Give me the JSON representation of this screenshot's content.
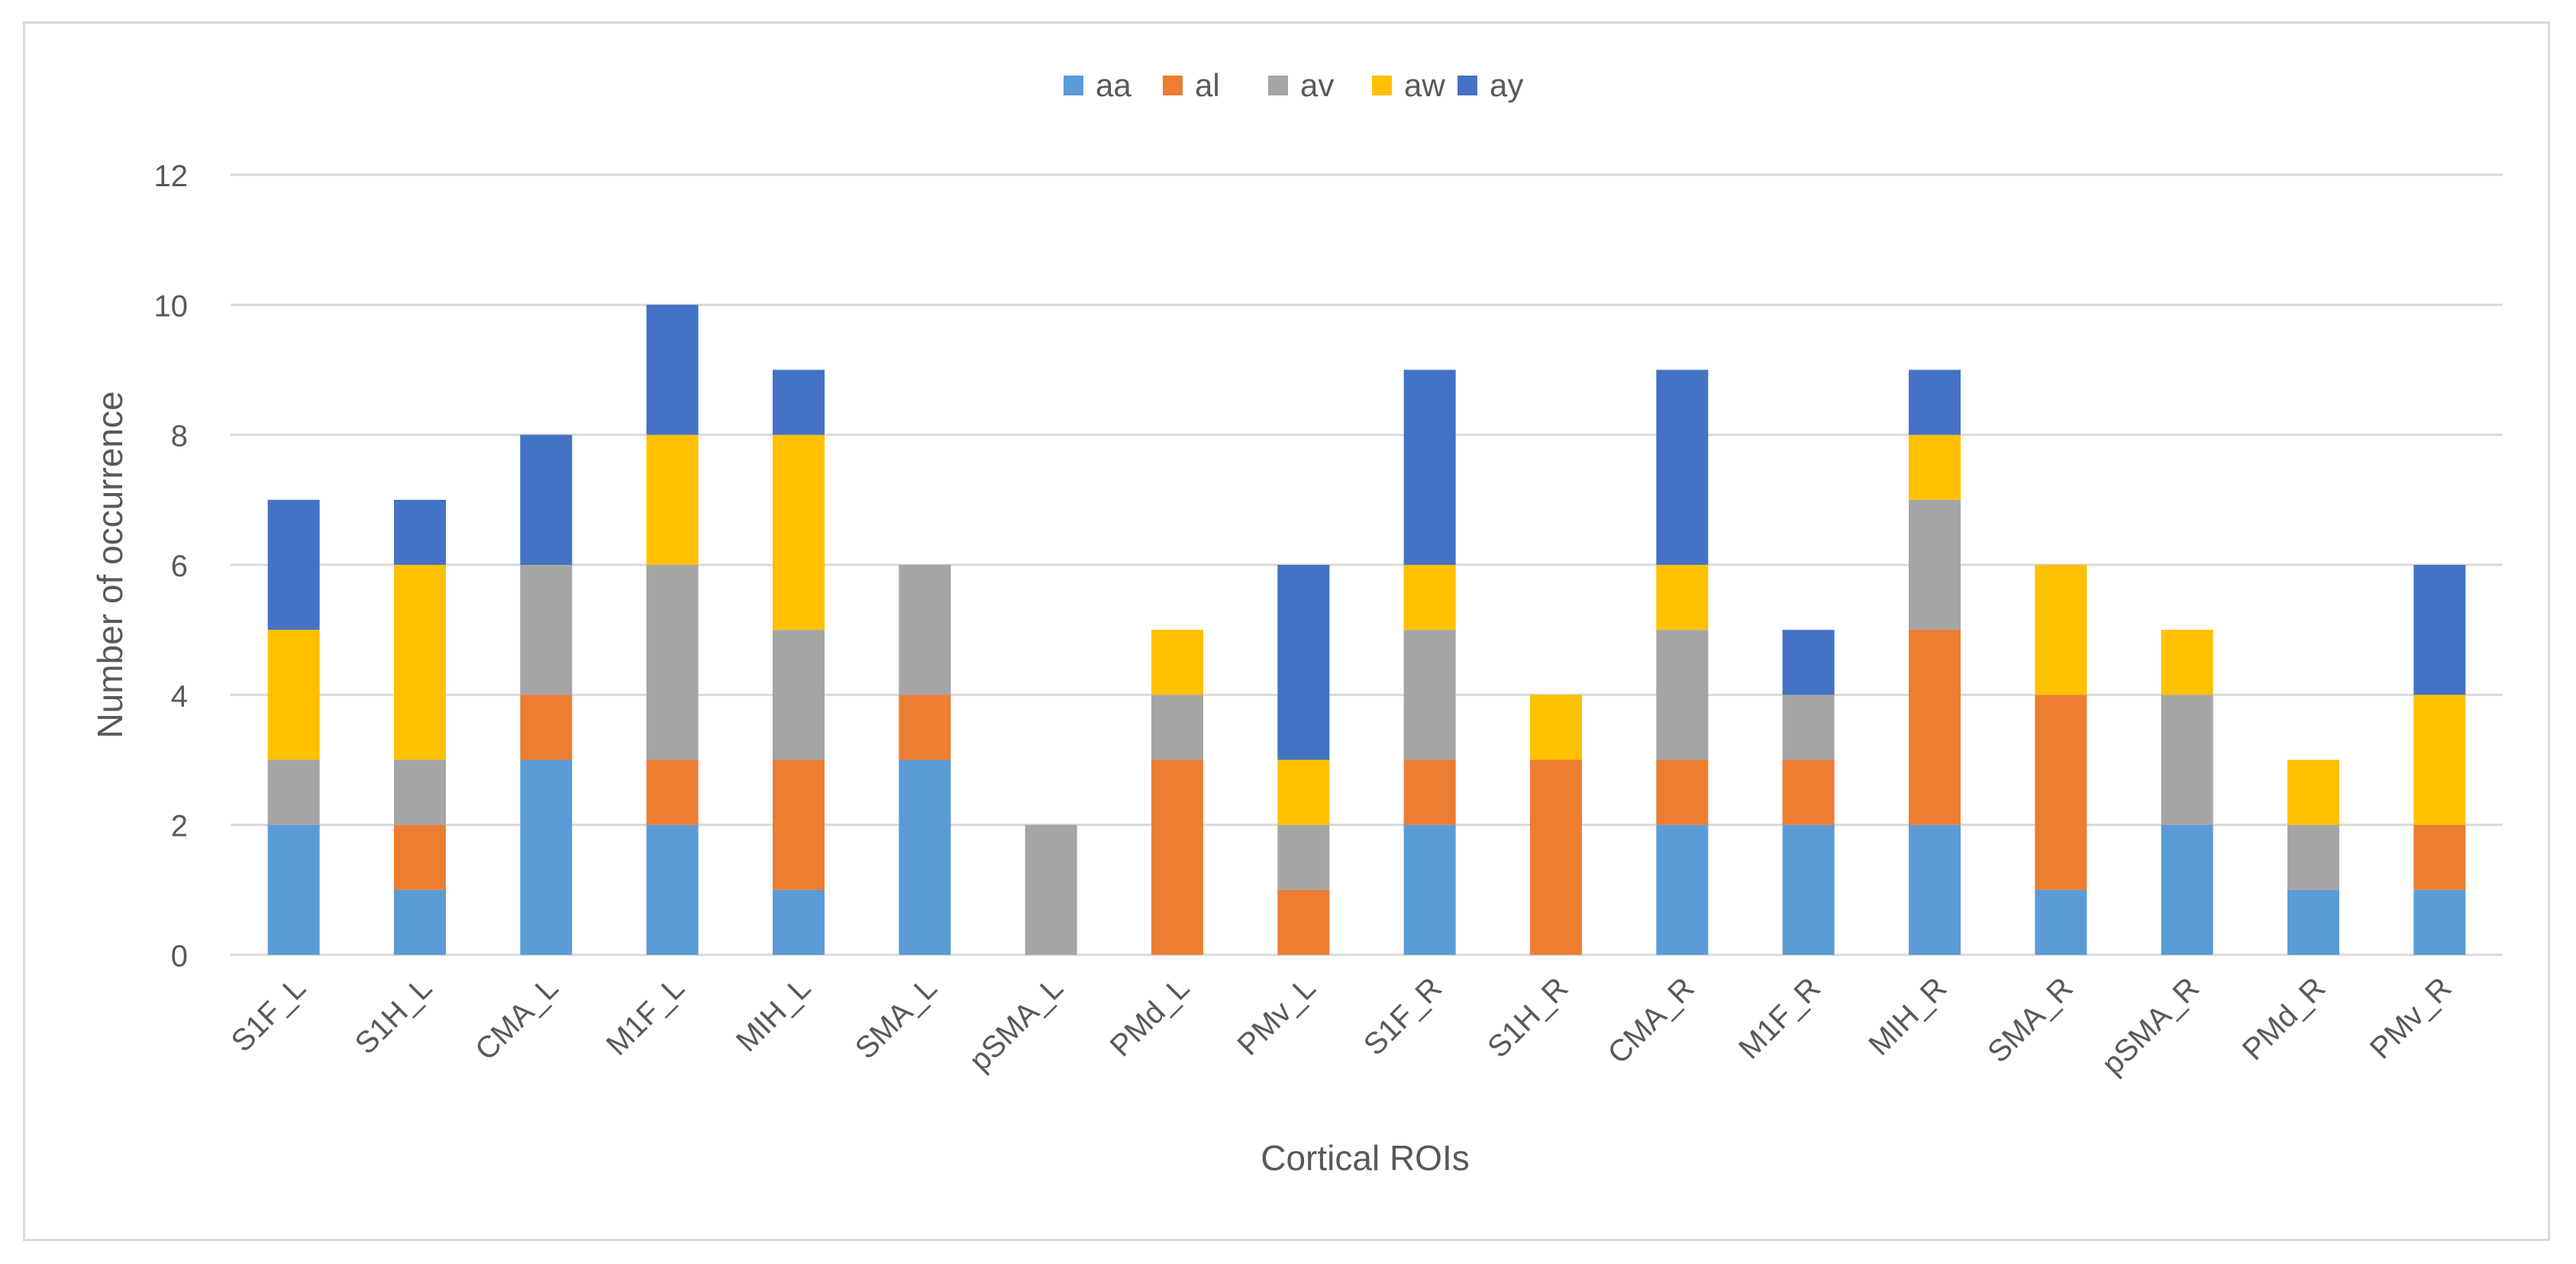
{
  "chart_data": {
    "type": "bar",
    "stacked": true,
    "title": "",
    "xlabel": "Cortical ROIs",
    "ylabel": "Number of occurrence",
    "ylim": [
      0,
      12
    ],
    "y_ticks": [
      0,
      2,
      4,
      6,
      8,
      10,
      12
    ],
    "grid": true,
    "legend_position": "top-center",
    "categories": [
      "S1F_L",
      "S1H_L",
      "CMA_L",
      "M1F_L",
      "MIH_L",
      "SMA_L",
      "pSMA_L",
      "PMd_L",
      "PMv_L",
      "S1F_R",
      "S1H_R",
      "CMA_R",
      "M1F_R",
      "MIH_R",
      "SMA_R",
      "pSMA_R",
      "PMd_R",
      "PMv_R"
    ],
    "series": [
      {
        "name": "aa",
        "color": "#5b9bd5",
        "values": [
          2,
          1,
          3,
          2,
          1,
          3,
          0,
          0,
          0,
          2,
          0,
          2,
          2,
          2,
          1,
          2,
          1,
          1
        ]
      },
      {
        "name": "al",
        "color": "#ed7d31",
        "values": [
          0,
          1,
          1,
          1,
          2,
          1,
          0,
          3,
          1,
          1,
          3,
          1,
          1,
          3,
          3,
          0,
          0,
          1
        ]
      },
      {
        "name": "av",
        "color": "#a5a5a5",
        "values": [
          1,
          1,
          2,
          3,
          2,
          2,
          2,
          1,
          1,
          2,
          0,
          2,
          1,
          2,
          0,
          2,
          1,
          0
        ]
      },
      {
        "name": "aw",
        "color": "#ffc000",
        "values": [
          2,
          3,
          0,
          2,
          3,
          0,
          0,
          1,
          1,
          1,
          1,
          1,
          0,
          1,
          2,
          1,
          1,
          2
        ]
      },
      {
        "name": "ay",
        "color": "#4472c4",
        "values": [
          2,
          1,
          2,
          2,
          1,
          0,
          0,
          0,
          3,
          3,
          0,
          3,
          1,
          1,
          0,
          0,
          0,
          2
        ]
      }
    ]
  }
}
